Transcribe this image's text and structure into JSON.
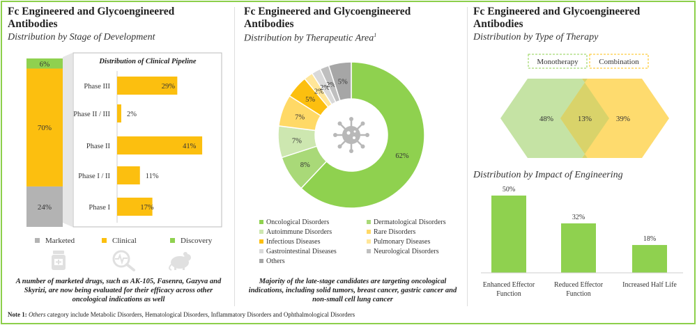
{
  "colors": {
    "green": "#8fd14f",
    "light_green": "#b6df8d",
    "pale_green": "#cde7b0",
    "orange": "#fcbf0f",
    "light_orange": "#ffd966",
    "gray": "#b3b3b3",
    "dark_gray": "#999999",
    "border": "#8ccf4a"
  },
  "panel1": {
    "title_line1": "Fc Engineered and Glycoengineered",
    "title_line2": "Antibodies",
    "subtitle": "Distribution by Stage of Development",
    "caption": "A number of marketed drugs, such as AK-105, Fasenra, Gazyva and Skyrizi, are now being evaluated for their efficacy across other oncological indications as well",
    "icons": [
      "pill-bottle-icon",
      "magnifier-pulse-icon",
      "mouse-icon"
    ]
  },
  "panel2": {
    "title_line1": "Fc Engineered and Glycoengineered",
    "title_line2": "Antibodies",
    "subtitle": "Distribution by Therapeutic Area",
    "subtitle_sup": "1",
    "center_icon": "virus-icon",
    "caption": "Majority of the late-stage candidates are targeting oncological indications, including solid tumors, breast cancer, gastric cancer and non-small cell lung cancer"
  },
  "panel3": {
    "title_line1": "Fc Engineered and Glycoengineered",
    "title_line2": "Antibodies",
    "subtitle": "Distribution by Type of Therapy",
    "subtitle2": "Distribution by Impact of Engineering"
  },
  "note": {
    "label": "Note 1:",
    "italic": "Others",
    "text": " category include Metabolic Disorders, Hematological Disorders, Inflammatory Disorders and Ophthalmological Disorders"
  },
  "chart_data": [
    {
      "id": "stage",
      "type": "bar",
      "title": "Distribution by Stage of Development",
      "stacked": true,
      "series": [
        {
          "name": "Marketed",
          "value": 24,
          "label": "24%",
          "color": "#b3b3b3"
        },
        {
          "name": "Clinical",
          "value": 70,
          "label": "70%",
          "color": "#fcbf0f"
        },
        {
          "name": "Discovery",
          "value": 6,
          "label": "6%",
          "color": "#8fd14f"
        }
      ]
    },
    {
      "id": "pipeline",
      "type": "bar",
      "orientation": "horizontal",
      "title": "Distribution of Clinical Pipeline",
      "categories": [
        "Phase III",
        "Phase II / III",
        "Phase II",
        "Phase I / II",
        "Phase I"
      ],
      "values": [
        29,
        2,
        41,
        11,
        17
      ],
      "labels": [
        "29%",
        "2%",
        "41%",
        "11%",
        "17%"
      ],
      "xlim": [
        0,
        45
      ]
    },
    {
      "id": "therapeutic",
      "type": "pie",
      "donut": true,
      "title": "Distribution by Therapeutic Area",
      "slices": [
        {
          "name": "Oncological Disorders",
          "value": 62,
          "label": "62%",
          "color": "#8fd14f"
        },
        {
          "name": "Dermatological Disorders",
          "value": 8,
          "label": "8%",
          "color": "#a9d978"
        },
        {
          "name": "Autoimmune Disorders",
          "value": 7,
          "label": "7%",
          "color": "#cde7b0"
        },
        {
          "name": "Rare Disorders",
          "value": 7,
          "label": "7%",
          "color": "#ffd966"
        },
        {
          "name": "Infectious Diseases",
          "value": 5,
          "label": "5%",
          "color": "#fcbf0f"
        },
        {
          "name": "Pulmonary Diseases",
          "value": 2,
          "label": "2%",
          "color": "#ffe699"
        },
        {
          "name": "Gastrointestinal Diseases",
          "value": 2,
          "label": "2%",
          "color": "#d9d9d9"
        },
        {
          "name": "Neurological Disorders",
          "value": 2,
          "label": "2%",
          "color": "#bfbfbf"
        },
        {
          "name": "Others",
          "value": 5,
          "label": "5%",
          "color": "#a6a6a6"
        }
      ]
    },
    {
      "id": "therapy",
      "type": "venn",
      "title": "Distribution by Type of Therapy",
      "sets": [
        {
          "name": "Monotherapy",
          "value": 48,
          "label": "48%",
          "color": "#c5e3a4"
        },
        {
          "name": "Combination",
          "value": 39,
          "label": "39%",
          "color": "#fed966"
        }
      ],
      "overlap": {
        "value": 13,
        "label": "13%"
      }
    },
    {
      "id": "impact",
      "type": "bar",
      "title": "Distribution by Impact of Engineering",
      "categories": [
        "Enhanced Effector Function",
        "Reduced Effector Function",
        "Increased Half Life"
      ],
      "values": [
        50,
        32,
        18
      ],
      "labels": [
        "50%",
        "32%",
        "18%"
      ],
      "ylim": [
        0,
        50
      ]
    }
  ]
}
